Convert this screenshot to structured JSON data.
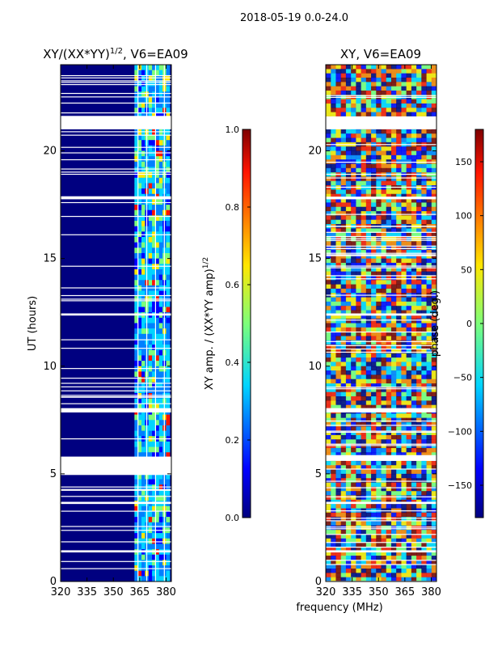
{
  "suptitle": "2018-05-19 0.0-24.0",
  "shared_xlabel": "frequency (MHz)",
  "chart_data": [
    {
      "type": "heatmap",
      "title_main": "XY/(XX*YY)",
      "title_exp": "1/2",
      "title_suffix": ", V6=EA09",
      "ylabel": "UT (hours)",
      "xlim": [
        320,
        383
      ],
      "ylim": [
        0,
        24
      ],
      "xticks": [
        320,
        335,
        350,
        365,
        380
      ],
      "yticks": [
        0,
        5,
        10,
        15,
        20
      ],
      "vlim": [
        0,
        1
      ],
      "colormap": "jet",
      "colorbar": {
        "label_main": "XY amp. / (XX*YY amp)",
        "label_exp": "1/2",
        "ticks": [
          "0.0",
          "0.2",
          "0.4",
          "0.6",
          "0.8",
          "1.0"
        ],
        "tick_values": [
          0.0,
          0.2,
          0.4,
          0.6,
          0.8,
          1.0
        ]
      },
      "blank_ut_hours": [
        [
          21.0,
          21.6
        ],
        [
          7.85,
          8.05
        ],
        [
          4.95,
          5.8
        ],
        [
          1.35,
          1.45
        ],
        [
          3.6,
          3.7
        ],
        [
          12.35,
          12.45
        ],
        [
          17.75,
          17.85
        ]
      ],
      "signal_band_mhz": [
        362,
        382
      ]
    },
    {
      "type": "heatmap",
      "title_main": "XY, V6=EA09",
      "xlim": [
        320,
        383
      ],
      "ylim": [
        0,
        24
      ],
      "xticks": [
        320,
        335,
        350,
        365,
        380
      ],
      "yticks": [
        0,
        5,
        10,
        15,
        20
      ],
      "vlim": [
        -180,
        180
      ],
      "colormap": "jet",
      "colorbar": {
        "label_main": "phase (deg.)",
        "ticks": [
          "−150",
          "−100",
          "−50",
          "0",
          "50",
          "100",
          "150"
        ],
        "tick_values": [
          -150,
          -100,
          -50,
          0,
          50,
          100,
          150
        ]
      },
      "blank_ut_hours": [
        [
          21.0,
          21.6
        ],
        [
          7.85,
          8.05
        ],
        [
          5.6,
          5.8
        ],
        [
          1.35,
          1.45
        ],
        [
          3.6,
          3.7
        ],
        [
          12.35,
          12.45
        ],
        [
          17.75,
          17.85
        ]
      ]
    }
  ]
}
